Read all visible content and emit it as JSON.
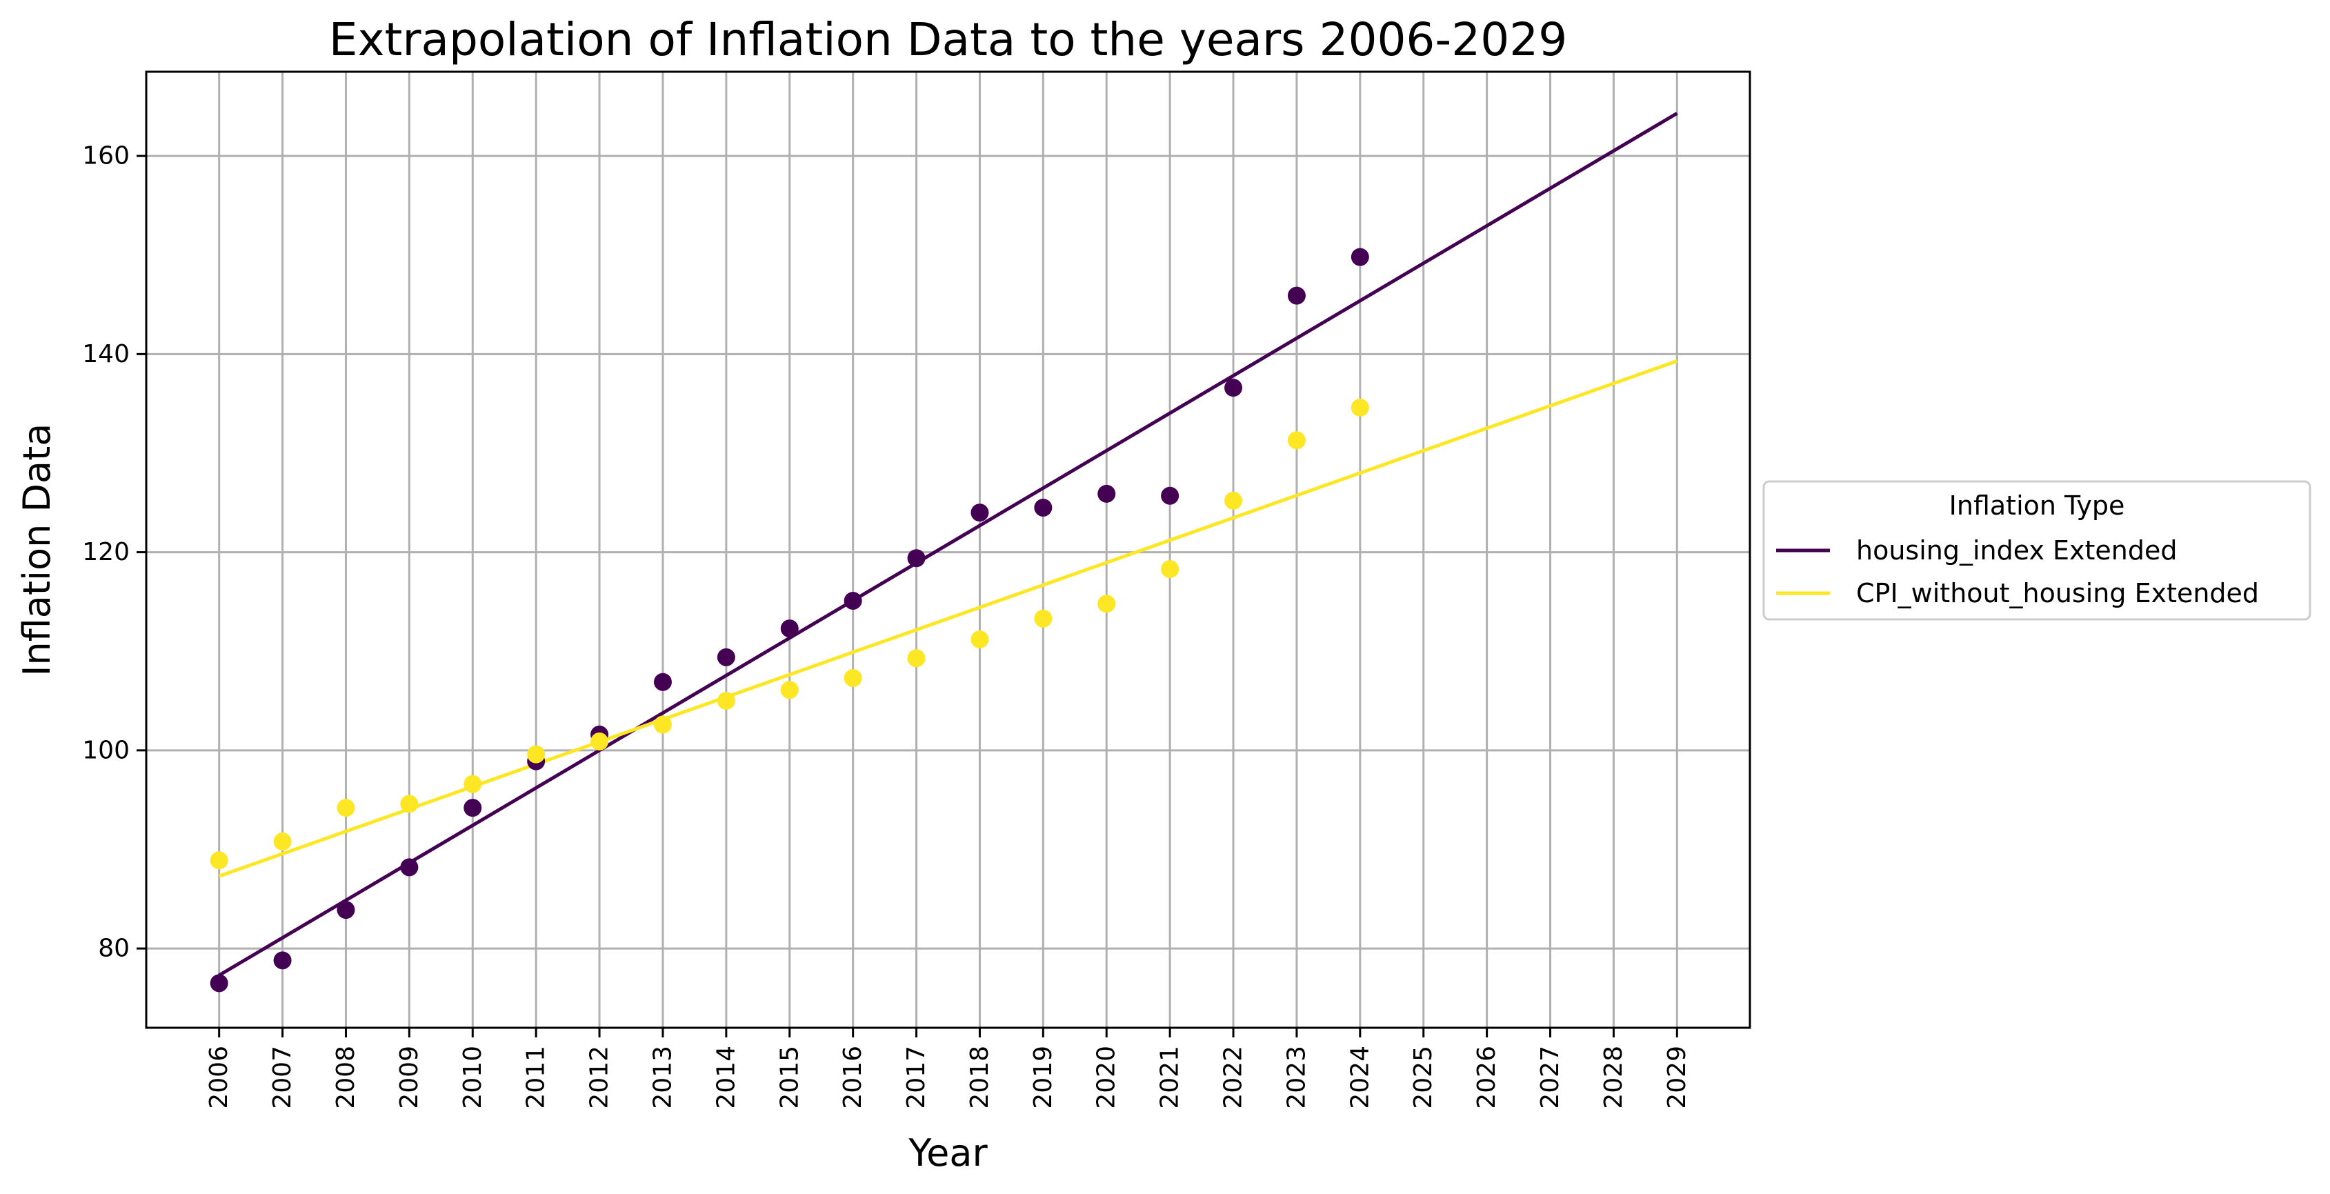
{
  "chart_data": {
    "type": "scatter",
    "title": "Extrapolation of Inflation Data to the years 2006-2029",
    "xlabel": "Year",
    "ylabel": "Inflation Data",
    "x_ticks": [
      2006,
      2007,
      2008,
      2009,
      2010,
      2011,
      2012,
      2013,
      2014,
      2015,
      2016,
      2017,
      2018,
      2019,
      2020,
      2021,
      2022,
      2023,
      2024,
      2025,
      2026,
      2027,
      2028,
      2029
    ],
    "y_ticks": [
      80,
      100,
      120,
      140,
      160
    ],
    "xlim": [
      2004.85,
      2030.15
    ],
    "ylim": [
      72.0,
      168.5
    ],
    "grid": true,
    "legend": {
      "title": "Inflation Type",
      "placement": "outside-right"
    },
    "series": [
      {
        "name": "housing_index Extended",
        "color": "#440154",
        "points": {
          "x": [
            2006,
            2007,
            2008,
            2009,
            2010,
            2011,
            2012,
            2013,
            2014,
            2015,
            2016,
            2017,
            2018,
            2019,
            2020,
            2021,
            2022,
            2023,
            2024
          ],
          "y": [
            76.5,
            78.8,
            83.9,
            88.2,
            94.2,
            98.9,
            101.6,
            106.9,
            109.4,
            112.3,
            115.1,
            119.4,
            124.0,
            124.5,
            125.9,
            125.7,
            136.6,
            145.9,
            149.8
          ]
        },
        "trend": {
          "x": [
            2006,
            2029
          ],
          "y": [
            77.3,
            164.3
          ]
        }
      },
      {
        "name": "CPI_without_housing Extended",
        "color": "#fde725",
        "points": {
          "x": [
            2006,
            2007,
            2008,
            2009,
            2010,
            2011,
            2012,
            2013,
            2014,
            2015,
            2016,
            2017,
            2018,
            2019,
            2020,
            2021,
            2022,
            2023,
            2024
          ],
          "y": [
            88.9,
            90.8,
            94.2,
            94.6,
            96.6,
            99.6,
            100.9,
            102.6,
            105.0,
            106.1,
            107.3,
            109.3,
            111.2,
            113.3,
            114.8,
            118.3,
            125.2,
            131.3,
            134.6
          ]
        },
        "trend": {
          "x": [
            2006,
            2029
          ],
          "y": [
            87.3,
            139.3
          ]
        }
      }
    ]
  }
}
